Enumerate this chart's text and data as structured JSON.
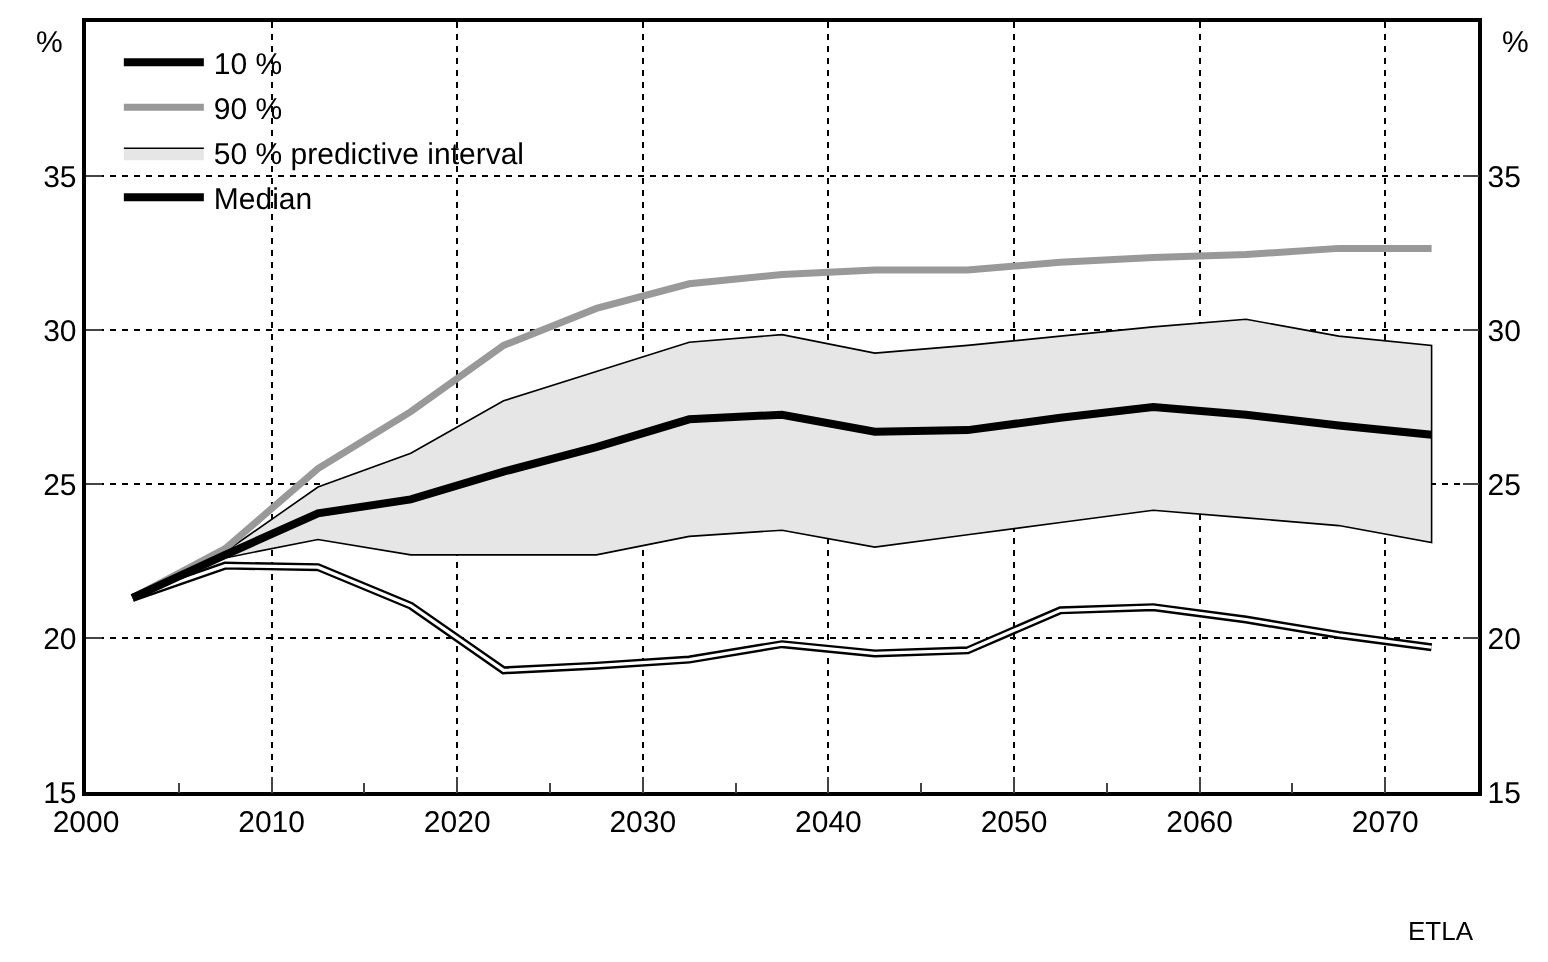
{
  "chart_data": {
    "type": "line",
    "ylabel": "%",
    "y2label": "%",
    "x": [
      2002.5,
      2007.5,
      2012.5,
      2017.5,
      2022.5,
      2027.5,
      2032.5,
      2037.5,
      2042.5,
      2047.5,
      2052.5,
      2057.5,
      2062.5,
      2067.5,
      2072.5
    ],
    "series": [
      {
        "name": "10 %",
        "type": "line",
        "color": "#000000",
        "values": [
          21.3,
          22.35,
          22.3,
          21.05,
          18.95,
          19.1,
          19.3,
          19.8,
          19.5,
          19.6,
          20.9,
          21.0,
          20.6,
          20.1,
          19.7
        ]
      },
      {
        "name": "90 %",
        "type": "line",
        "color": "#999999",
        "values": [
          21.3,
          22.9,
          25.5,
          27.35,
          29.5,
          30.7,
          31.5,
          31.8,
          31.95,
          31.95,
          32.2,
          32.35,
          32.45,
          32.65,
          32.65
        ]
      },
      {
        "name": "50 % predictive interval",
        "type": "area",
        "color": "#e6e6e6",
        "values": [
          null,
          null,
          null,
          null,
          null,
          null,
          null,
          null,
          null,
          null,
          null,
          null,
          null,
          null,
          null
        ],
        "lower": [
          21.3,
          22.6,
          23.2,
          22.7,
          22.7,
          22.7,
          23.3,
          23.5,
          22.95,
          23.35,
          23.75,
          24.15,
          23.9,
          23.65,
          23.1
        ],
        "upper": [
          21.3,
          22.8,
          24.9,
          26.0,
          27.7,
          28.65,
          29.6,
          29.85,
          29.25,
          29.5,
          29.8,
          30.1,
          30.35,
          29.8,
          29.5
        ]
      },
      {
        "name": "Median",
        "color": "#000000",
        "values": [
          21.3,
          22.7,
          24.05,
          24.5,
          25.4,
          26.2,
          27.1,
          27.25,
          26.7,
          26.75,
          27.15,
          27.5,
          27.25,
          26.9,
          26.6
        ]
      }
    ],
    "xlim": [
      2000,
      2075
    ],
    "xticks": [
      2000,
      {
        "value": 2005,
        "label": null
      },
      2010,
      {
        "value": 2015,
        "label": null
      },
      2020,
      {
        "value": 2025,
        "label": null
      },
      2030,
      {
        "value": 2035,
        "label": null
      },
      2040,
      {
        "value": 2045,
        "label": null
      },
      2050,
      {
        "value": 2055,
        "label": null
      },
      2060,
      {
        "value": 2065,
        "label": null
      },
      2070
    ],
    "ylim": [
      15,
      40
    ],
    "yticks": [
      15,
      20,
      25,
      30,
      35
    ],
    "y2lim": [
      15,
      40
    ],
    "y2ticks": [
      15,
      20,
      25,
      30,
      35
    ],
    "grid": true,
    "legend": "top left",
    "annotations": [
      "ETLA"
    ]
  }
}
